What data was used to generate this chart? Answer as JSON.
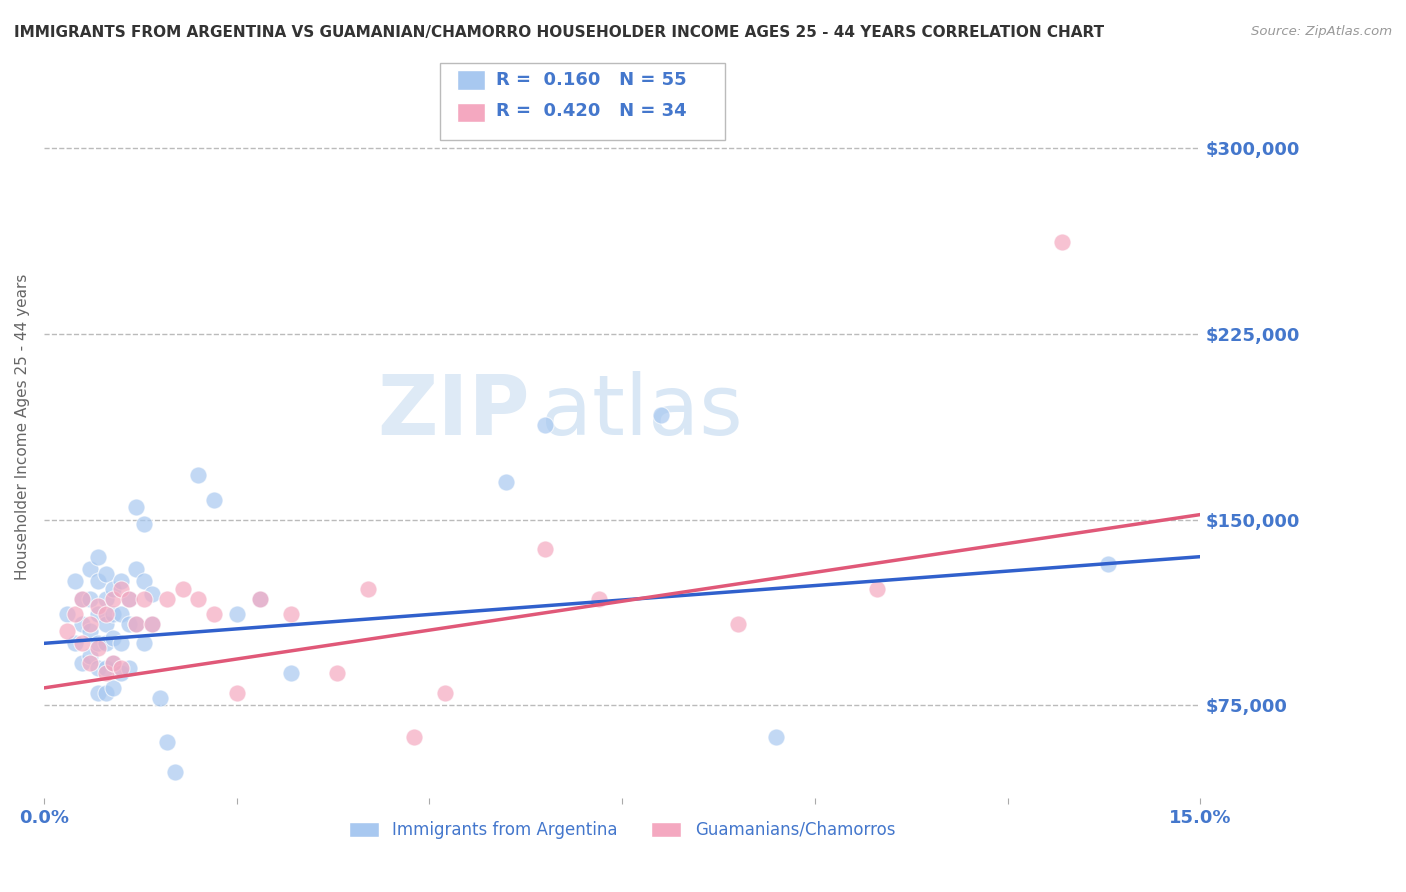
{
  "title": "IMMIGRANTS FROM ARGENTINA VS GUAMANIAN/CHAMORRO HOUSEHOLDER INCOME AGES 25 - 44 YEARS CORRELATION CHART",
  "source": "Source: ZipAtlas.com",
  "ylabel": "Householder Income Ages 25 - 44 years",
  "xlim": [
    0.0,
    0.15
  ],
  "ylim": [
    37500,
    337500
  ],
  "yticks": [
    75000,
    150000,
    225000,
    300000
  ],
  "ytick_labels": [
    "$75,000",
    "$150,000",
    "$225,000",
    "$300,000"
  ],
  "blue_R": 0.16,
  "blue_N": 55,
  "pink_R": 0.42,
  "pink_N": 34,
  "blue_color": "#A8C8F0",
  "pink_color": "#F4A8C0",
  "blue_line_color": "#3060CC",
  "pink_line_color": "#E05878",
  "background_color": "#FFFFFF",
  "grid_color": "#BBBBBB",
  "title_color": "#333333",
  "axis_label_color": "#666666",
  "tick_label_color": "#4477CC",
  "watermark_text": "ZIPatlas",
  "blue_scatter_x": [
    0.003,
    0.004,
    0.004,
    0.005,
    0.005,
    0.005,
    0.006,
    0.006,
    0.006,
    0.006,
    0.007,
    0.007,
    0.007,
    0.007,
    0.007,
    0.007,
    0.008,
    0.008,
    0.008,
    0.008,
    0.008,
    0.008,
    0.009,
    0.009,
    0.009,
    0.009,
    0.009,
    0.01,
    0.01,
    0.01,
    0.01,
    0.011,
    0.011,
    0.011,
    0.012,
    0.012,
    0.012,
    0.013,
    0.013,
    0.013,
    0.014,
    0.014,
    0.015,
    0.016,
    0.017,
    0.02,
    0.022,
    0.025,
    0.028,
    0.032,
    0.06,
    0.065,
    0.08,
    0.095,
    0.138
  ],
  "blue_scatter_y": [
    112000,
    125000,
    100000,
    118000,
    108000,
    92000,
    130000,
    118000,
    105000,
    95000,
    135000,
    125000,
    112000,
    100000,
    90000,
    80000,
    128000,
    118000,
    108000,
    100000,
    90000,
    80000,
    122000,
    112000,
    102000,
    92000,
    82000,
    125000,
    112000,
    100000,
    88000,
    118000,
    108000,
    90000,
    155000,
    130000,
    108000,
    148000,
    125000,
    100000,
    120000,
    108000,
    78000,
    60000,
    48000,
    168000,
    158000,
    112000,
    118000,
    88000,
    165000,
    188000,
    192000,
    62000,
    132000
  ],
  "pink_scatter_x": [
    0.003,
    0.004,
    0.005,
    0.005,
    0.006,
    0.006,
    0.007,
    0.007,
    0.008,
    0.008,
    0.009,
    0.009,
    0.01,
    0.01,
    0.011,
    0.012,
    0.013,
    0.014,
    0.016,
    0.018,
    0.02,
    0.022,
    0.025,
    0.028,
    0.032,
    0.038,
    0.042,
    0.048,
    0.052,
    0.065,
    0.072,
    0.09,
    0.108,
    0.132
  ],
  "pink_scatter_y": [
    105000,
    112000,
    100000,
    118000,
    108000,
    92000,
    115000,
    98000,
    112000,
    88000,
    118000,
    92000,
    122000,
    90000,
    118000,
    108000,
    118000,
    108000,
    118000,
    122000,
    118000,
    112000,
    80000,
    118000,
    112000,
    88000,
    122000,
    62000,
    80000,
    138000,
    118000,
    108000,
    122000,
    262000
  ],
  "blue_trendline_x": [
    0.0,
    0.15
  ],
  "blue_trendline_y": [
    100000,
    135000
  ],
  "pink_trendline_x": [
    0.0,
    0.15
  ],
  "pink_trendline_y": [
    82000,
    152000
  ],
  "legend_labels": [
    "Immigrants from Argentina",
    "Guamanians/Chamorros"
  ]
}
